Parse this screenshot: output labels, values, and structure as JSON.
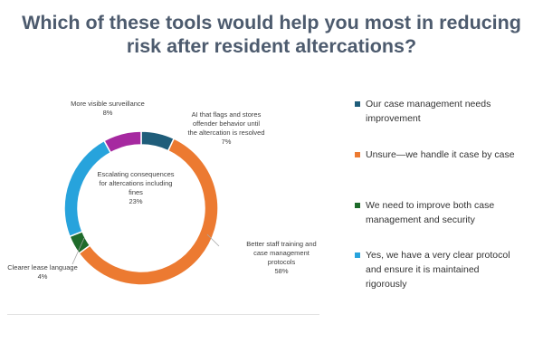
{
  "title_lines": [
    "Which of these tools would help you most in reducing",
    "risk after resident altercations?"
  ],
  "chart_data": {
    "type": "pie",
    "donut": true,
    "slices": [
      {
        "label_lines": [
          "AI that flags and stores",
          "offender behavior until",
          "the altercation is resolved"
        ],
        "pct_label": "7%",
        "value": 7,
        "color": "#1f5d7a"
      },
      {
        "label_lines": [
          "Better staff training and",
          "case management",
          "protocols"
        ],
        "pct_label": "58%",
        "value": 58,
        "color": "#ec7a31"
      },
      {
        "label_lines": [
          "Clearer lease language"
        ],
        "pct_label": "4%",
        "value": 4,
        "color": "#1e6b2a"
      },
      {
        "label_lines": [
          "Escalating consequences",
          "for altercations including",
          "fines"
        ],
        "pct_label": "23%",
        "value": 23,
        "color": "#27a3dc"
      },
      {
        "label_lines": [
          "More visible surveillance"
        ],
        "pct_label": "8%",
        "value": 8,
        "color": "#a629a0"
      }
    ]
  },
  "legend": [
    {
      "lines": [
        "Our case management needs",
        "improvement"
      ],
      "color": "#1f5d7a"
    },
    {
      "lines": [
        "Unsure—we handle it case by case"
      ],
      "color": "#ec7a31"
    },
    {
      "lines": [
        "We need to improve both case",
        "management and security"
      ],
      "color": "#1e6b2a"
    },
    {
      "lines": [
        "Yes, we have a very clear protocol",
        "and ensure it is maintained",
        "rigorously"
      ],
      "color": "#27a3dc"
    }
  ]
}
